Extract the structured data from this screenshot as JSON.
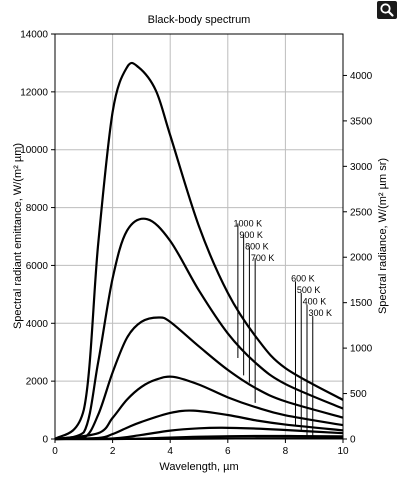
{
  "zoom_button": {
    "icon": "magnifier-icon"
  },
  "chart_data": {
    "type": "line",
    "title": "Black-body spectrum",
    "xlabel": "Wavelength, µm",
    "ylabel": "Spectral radiant emittance, W/(m² µm)",
    "y2label": "Spectral radiance, W/(m² µm sr)",
    "xlim": [
      0,
      10
    ],
    "ylim": [
      0,
      14000
    ],
    "y2lim": [
      0,
      4456
    ],
    "x_ticks": [
      "0",
      "2",
      "4",
      "6",
      "8",
      "10"
    ],
    "y_ticks": [
      "0",
      "2000",
      "4000",
      "6000",
      "8000",
      "10000",
      "12000",
      "14000"
    ],
    "y2_ticks": [
      "0",
      "500",
      "1000",
      "1500",
      "2000",
      "2500",
      "3000",
      "3500",
      "4000"
    ],
    "grid": true,
    "line_color": "#000000",
    "series": [
      {
        "name": "1000 K",
        "x": [
          1.0,
          1.5,
          2.0,
          2.5,
          2.9,
          3.5,
          4.0,
          5.0,
          6.0,
          7.0,
          8.0,
          10.0
        ],
        "y": [
          1010,
          6750,
          11300,
          12850,
          12850,
          12050,
          10500,
          7350,
          5050,
          3500,
          2450,
          1350
        ]
      },
      {
        "name": "900 K",
        "x": [
          1.0,
          1.5,
          2.0,
          2.5,
          3.2,
          4.0,
          5.0,
          6.0,
          7.0,
          8.0,
          10.0
        ],
        "y": [
          230,
          2660,
          5550,
          7200,
          7600,
          6850,
          5130,
          3650,
          2600,
          1900,
          1050
        ]
      },
      {
        "name": "800 K",
        "x": [
          1.0,
          1.5,
          2.0,
          2.5,
          3.0,
          3.6,
          4.0,
          5.0,
          6.0,
          7.0,
          8.0,
          10.0
        ],
        "y": [
          40,
          840,
          2300,
          3500,
          4050,
          4200,
          4050,
          3200,
          2390,
          1740,
          1300,
          740
        ]
      },
      {
        "name": "700 K",
        "x": [
          1.5,
          2.0,
          2.5,
          3.0,
          3.5,
          4.1,
          5.0,
          6.0,
          7.0,
          8.0,
          10.0
        ],
        "y": [
          200,
          730,
          1360,
          1800,
          2050,
          2150,
          1880,
          1440,
          1090,
          820,
          480
        ]
      },
      {
        "name": "600 K",
        "x": [
          1.5,
          2.0,
          2.5,
          3.0,
          4.0,
          4.8,
          6.0,
          7.0,
          8.0,
          10.0
        ],
        "y": [
          35,
          170,
          390,
          590,
          900,
          980,
          830,
          640,
          500,
          300
        ]
      },
      {
        "name": "500 K",
        "x": [
          2.0,
          3.0,
          4.0,
          5.0,
          5.8,
          7.0,
          8.0,
          10.0
        ],
        "y": [
          20,
          140,
          290,
          370,
          390,
          360,
          310,
          200
        ]
      },
      {
        "name": "400 K",
        "x": [
          2.5,
          3.5,
          5.0,
          7.2,
          8.5,
          10.0
        ],
        "y": [
          5,
          30,
          80,
          105,
          100,
          90
        ]
      },
      {
        "name": "300 K",
        "x": [
          3.5,
          5.0,
          7.0,
          9.6,
          10.0
        ],
        "y": [
          3,
          12,
          25,
          30,
          30
        ]
      }
    ],
    "labels": [
      {
        "text": "1000 K",
        "x": 6.2,
        "y": 7350
      },
      {
        "text": "900 K",
        "x": 6.4,
        "y": 6950
      },
      {
        "text": "800 K",
        "x": 6.6,
        "y": 6550
      },
      {
        "text": "700 K",
        "x": 6.8,
        "y": 6150
      },
      {
        "text": "600 K",
        "x": 8.2,
        "y": 5450
      },
      {
        "text": "500 K",
        "x": 8.4,
        "y": 5050
      },
      {
        "text": "400 K",
        "x": 8.6,
        "y": 4650
      },
      {
        "text": "300 K",
        "x": 8.8,
        "y": 4250
      }
    ],
    "leaders": [
      {
        "x": 6.35,
        "y_top": 7450,
        "y_bottom": 2800
      },
      {
        "x": 6.55,
        "y_top": 7050,
        "y_bottom": 2200
      },
      {
        "x": 6.75,
        "y_top": 6650,
        "y_bottom": 1950
      },
      {
        "x": 6.95,
        "y_top": 6250,
        "y_bottom": 1250
      },
      {
        "x": 8.35,
        "y_top": 5450,
        "y_bottom": 450
      },
      {
        "x": 8.55,
        "y_top": 5050,
        "y_bottom": 290
      },
      {
        "x": 8.75,
        "y_top": 4650,
        "y_bottom": 120
      },
      {
        "x": 8.95,
        "y_top": 4250,
        "y_bottom": 20
      }
    ]
  }
}
